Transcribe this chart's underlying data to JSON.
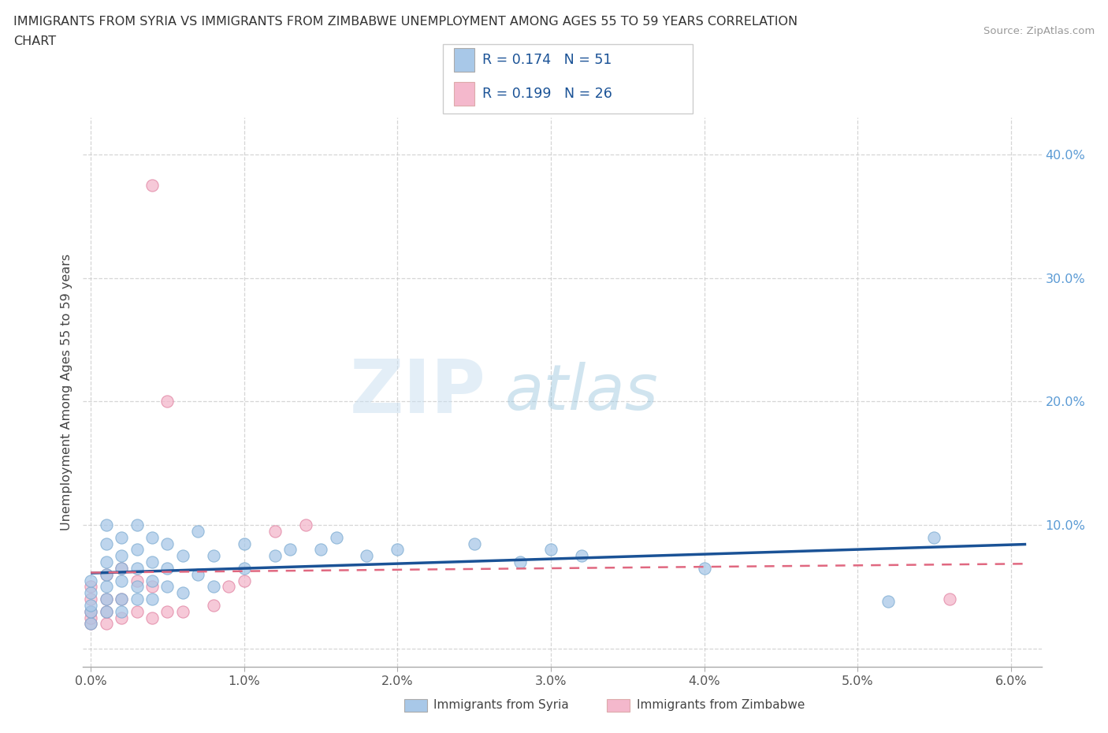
{
  "title_line1": "IMMIGRANTS FROM SYRIA VS IMMIGRANTS FROM ZIMBABWE UNEMPLOYMENT AMONG AGES 55 TO 59 YEARS CORRELATION",
  "title_line2": "CHART",
  "source": "Source: ZipAtlas.com",
  "ylabel": "Unemployment Among Ages 55 to 59 years",
  "xlim": [
    -0.0005,
    0.062
  ],
  "ylim": [
    -0.015,
    0.43
  ],
  "xticks": [
    0.0,
    0.01,
    0.02,
    0.03,
    0.04,
    0.05,
    0.06
  ],
  "yticks": [
    0.0,
    0.1,
    0.2,
    0.3,
    0.4
  ],
  "ytick_labels": [
    "",
    "10.0%",
    "20.0%",
    "30.0%",
    "40.0%"
  ],
  "xtick_labels": [
    "0.0%",
    "1.0%",
    "2.0%",
    "3.0%",
    "4.0%",
    "5.0%",
    "6.0%"
  ],
  "syria_color": "#a8c8e8",
  "syria_edge_color": "#7aaad0",
  "zimbabwe_color": "#f4b8cc",
  "zimbabwe_edge_color": "#e080a0",
  "syria_line_color": "#1a5296",
  "zimbabwe_line_color": "#e06880",
  "syria_R": 0.174,
  "syria_N": 51,
  "zimbabwe_R": 0.199,
  "zimbabwe_N": 26,
  "watermark_zip": "ZIP",
  "watermark_atlas": "atlas",
  "grid_color": "#cccccc",
  "syria_scatter_x": [
    0.0,
    0.0,
    0.0,
    0.0,
    0.0,
    0.001,
    0.001,
    0.001,
    0.001,
    0.001,
    0.001,
    0.001,
    0.002,
    0.002,
    0.002,
    0.002,
    0.002,
    0.002,
    0.003,
    0.003,
    0.003,
    0.003,
    0.003,
    0.004,
    0.004,
    0.004,
    0.004,
    0.005,
    0.005,
    0.005,
    0.006,
    0.006,
    0.007,
    0.007,
    0.008,
    0.008,
    0.01,
    0.01,
    0.012,
    0.013,
    0.015,
    0.016,
    0.018,
    0.02,
    0.025,
    0.028,
    0.03,
    0.032,
    0.04,
    0.052,
    0.055
  ],
  "syria_scatter_y": [
    0.02,
    0.03,
    0.035,
    0.045,
    0.055,
    0.03,
    0.04,
    0.05,
    0.06,
    0.07,
    0.085,
    0.1,
    0.03,
    0.04,
    0.055,
    0.065,
    0.075,
    0.09,
    0.04,
    0.05,
    0.065,
    0.08,
    0.1,
    0.04,
    0.055,
    0.07,
    0.09,
    0.05,
    0.065,
    0.085,
    0.045,
    0.075,
    0.06,
    0.095,
    0.05,
    0.075,
    0.065,
    0.085,
    0.075,
    0.08,
    0.08,
    0.09,
    0.075,
    0.08,
    0.085,
    0.07,
    0.08,
    0.075,
    0.065,
    0.038,
    0.09
  ],
  "zimbabwe_scatter_x": [
    0.0,
    0.0,
    0.0,
    0.0,
    0.0,
    0.001,
    0.001,
    0.001,
    0.001,
    0.002,
    0.002,
    0.002,
    0.003,
    0.003,
    0.004,
    0.004,
    0.004,
    0.005,
    0.005,
    0.006,
    0.008,
    0.009,
    0.01,
    0.012,
    0.014,
    0.056
  ],
  "zimbabwe_scatter_y": [
    0.02,
    0.025,
    0.03,
    0.04,
    0.05,
    0.02,
    0.03,
    0.04,
    0.06,
    0.025,
    0.04,
    0.065,
    0.03,
    0.055,
    0.025,
    0.05,
    0.375,
    0.03,
    0.2,
    0.03,
    0.035,
    0.05,
    0.055,
    0.095,
    0.1,
    0.04
  ]
}
